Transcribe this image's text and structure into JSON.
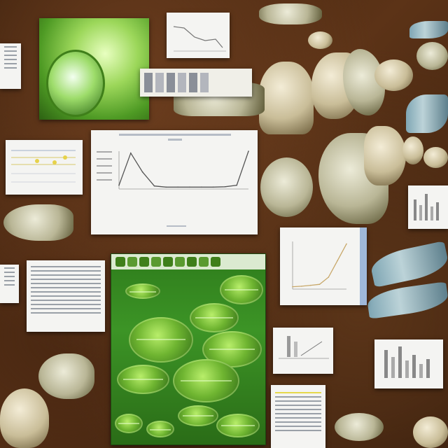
{
  "chart_data": [
    {
      "type": "line",
      "x": [
        0,
        1,
        2,
        3,
        4,
        5,
        6,
        7,
        8,
        9,
        10,
        11
      ],
      "values": [
        0.1,
        0.95,
        0.45,
        0.08,
        0.05,
        0.05,
        0.05,
        0.05,
        0.05,
        0.06,
        0.1,
        1.0
      ],
      "grid": false
    },
    {
      "type": "line",
      "x": [
        0,
        1,
        2,
        3,
        4,
        5,
        6
      ],
      "values": [
        0.05,
        0.06,
        0.08,
        0.1,
        0.25,
        0.6,
        0.95
      ],
      "grid": false
    }
  ],
  "colors": {
    "background": "#4a2812",
    "leaf_green": "#6fb531",
    "bone": "#d8cfb0",
    "chart_line": "#555555"
  },
  "icons": {
    "fossil": "fossil-icon",
    "leaf": "leaf-icon",
    "fish": "fish-icon"
  }
}
